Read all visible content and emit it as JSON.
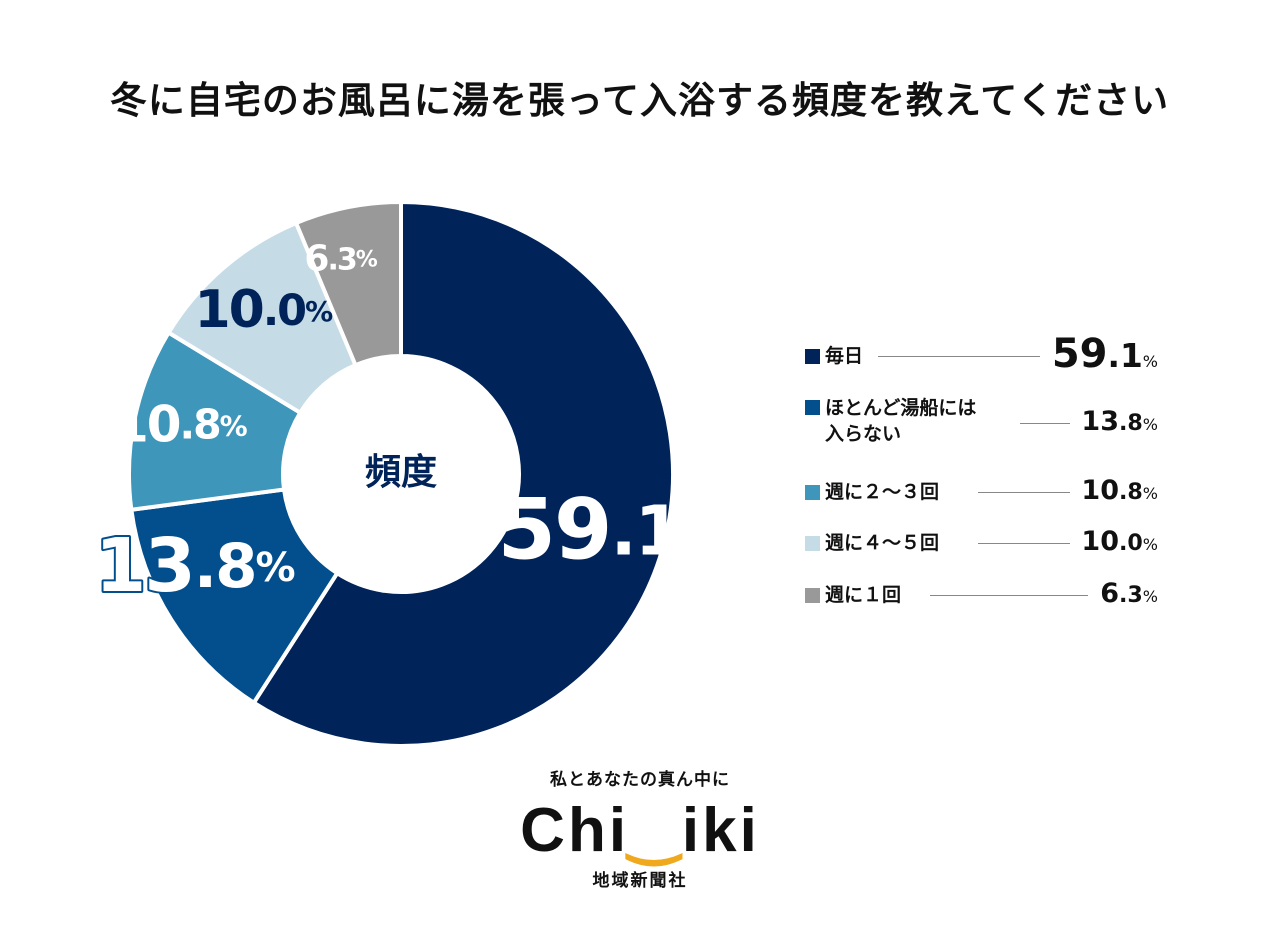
{
  "chart_data": {
    "type": "pie",
    "variant": "donut",
    "title": "冬に自宅のお風呂に湯を張って入浴する頻度を教えてください",
    "center_label": "頻度",
    "categories": [
      "毎日",
      "ほとんど湯船には入らない",
      "週に２～３回",
      "週に４～５回",
      "週に１回"
    ],
    "values": [
      59.1,
      13.8,
      10.8,
      10.0,
      6.3
    ],
    "value_labels": [
      "59.1%",
      "13.8%",
      "10.8%",
      "10.0%",
      "6.3%"
    ],
    "unit": "%",
    "colors": [
      "#00235a",
      "#034e8c",
      "#3e96bb",
      "#c5dce7",
      "#999999"
    ],
    "legend": {
      "position": "right",
      "labels": [
        "毎日",
        "ほとんど湯船には\n入らない",
        "週に２～３回",
        "週に４～５回",
        "週に１回"
      ]
    }
  },
  "brand": {
    "tagline": "私とあなたの真ん中に",
    "logo_text_left": "Chi",
    "logo_smile": "‿",
    "logo_text_right": "iki",
    "company": "地域新聞社"
  }
}
